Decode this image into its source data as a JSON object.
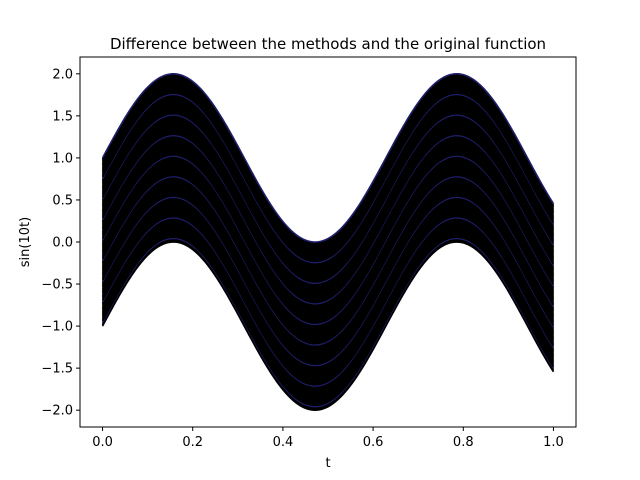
{
  "chart_data": {
    "type": "line",
    "title": "Difference between the methods and the original function",
    "xlabel": "t",
    "ylabel": "sin(10t)",
    "xlim": [
      -0.05,
      1.05
    ],
    "ylim": [
      -2.2,
      2.2
    ],
    "xticks": [
      0.0,
      0.2,
      0.4,
      0.6,
      0.8,
      1.0
    ],
    "xtick_labels": [
      "0.0",
      "0.2",
      "0.4",
      "0.6",
      "0.8",
      "1.0"
    ],
    "yticks": [
      -2.0,
      -1.5,
      -1.0,
      -0.5,
      0.0,
      0.5,
      1.0,
      1.5,
      2.0
    ],
    "ytick_labels": [
      "−2.0",
      "−1.5",
      "−1.0",
      "−0.5",
      "0.0",
      "0.5",
      "1.0",
      "1.5",
      "2.0"
    ],
    "grid": false,
    "legend": "none",
    "series_family": {
      "function": "sin(10t) + offset",
      "t_range": [
        0.0,
        1.0
      ],
      "offset_range": [
        -1.0,
        1.0
      ],
      "color": "#000000",
      "highlight_color": "#1f1f6e"
    }
  }
}
